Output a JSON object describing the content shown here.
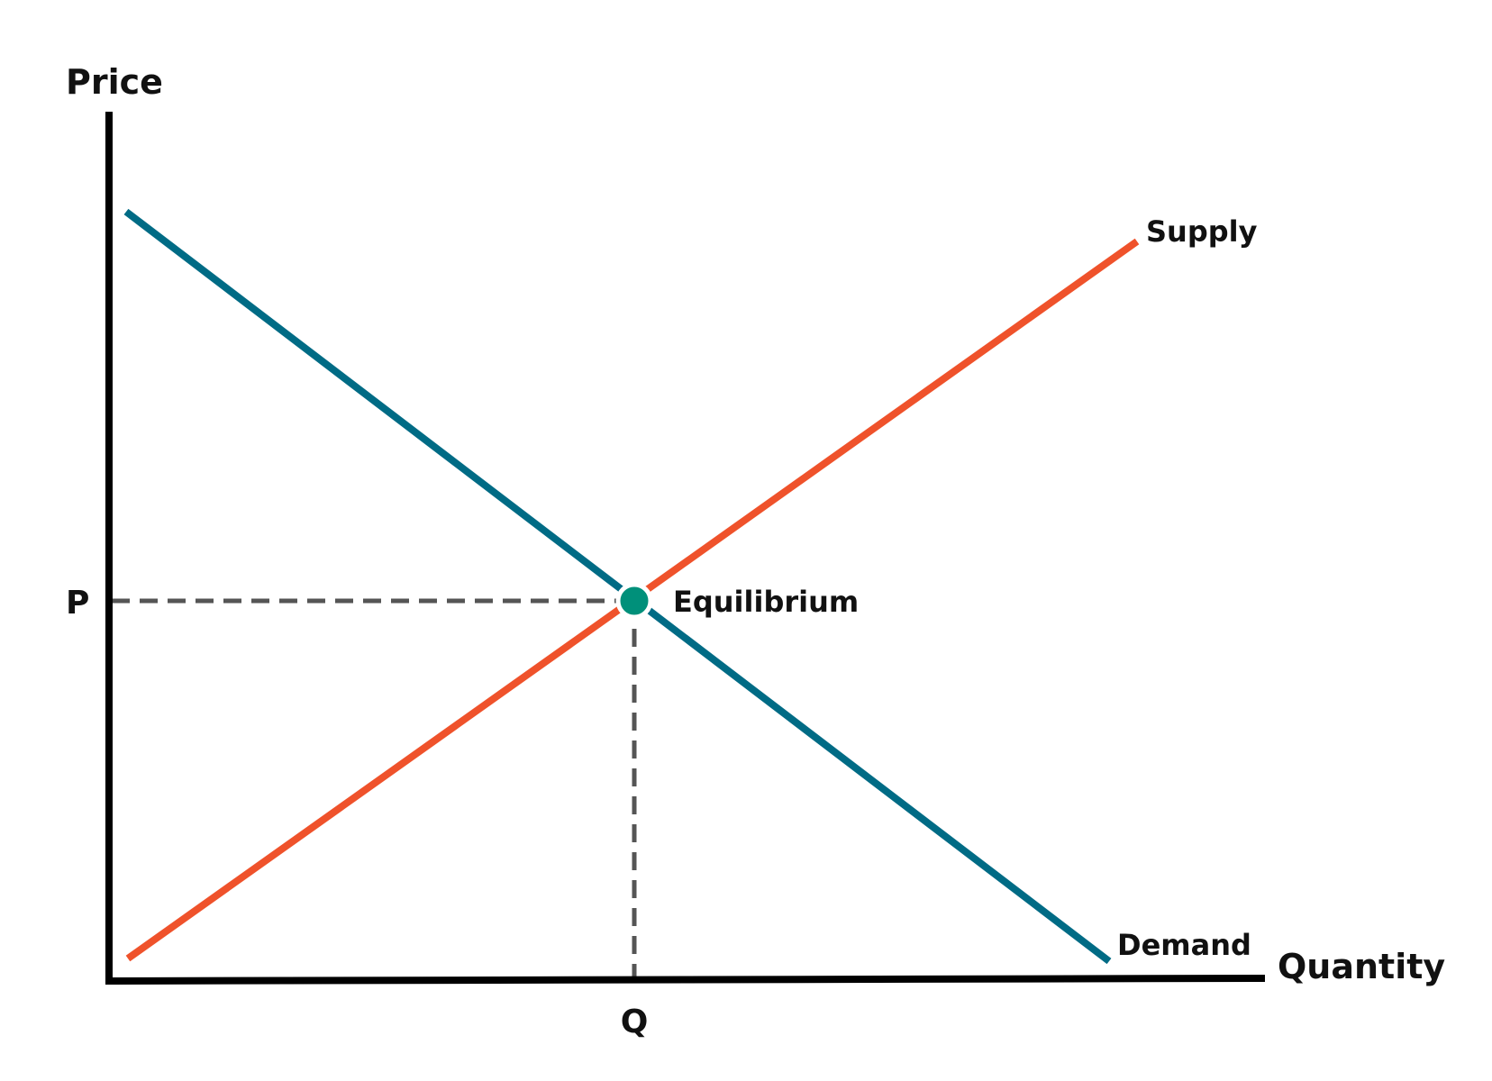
{
  "diagram": {
    "y_axis_label": "Price",
    "x_axis_label": "Quantity",
    "price_marker": "P",
    "quantity_marker": "Q",
    "curves": {
      "supply": {
        "label": "Supply",
        "color": "#ef522b"
      },
      "demand": {
        "label": "Demand",
        "color": "#006b85"
      }
    },
    "equilibrium": {
      "label": "Equilibrium",
      "color": "#00907a"
    },
    "axis_color": "#000000",
    "guide_color": "#555555"
  }
}
